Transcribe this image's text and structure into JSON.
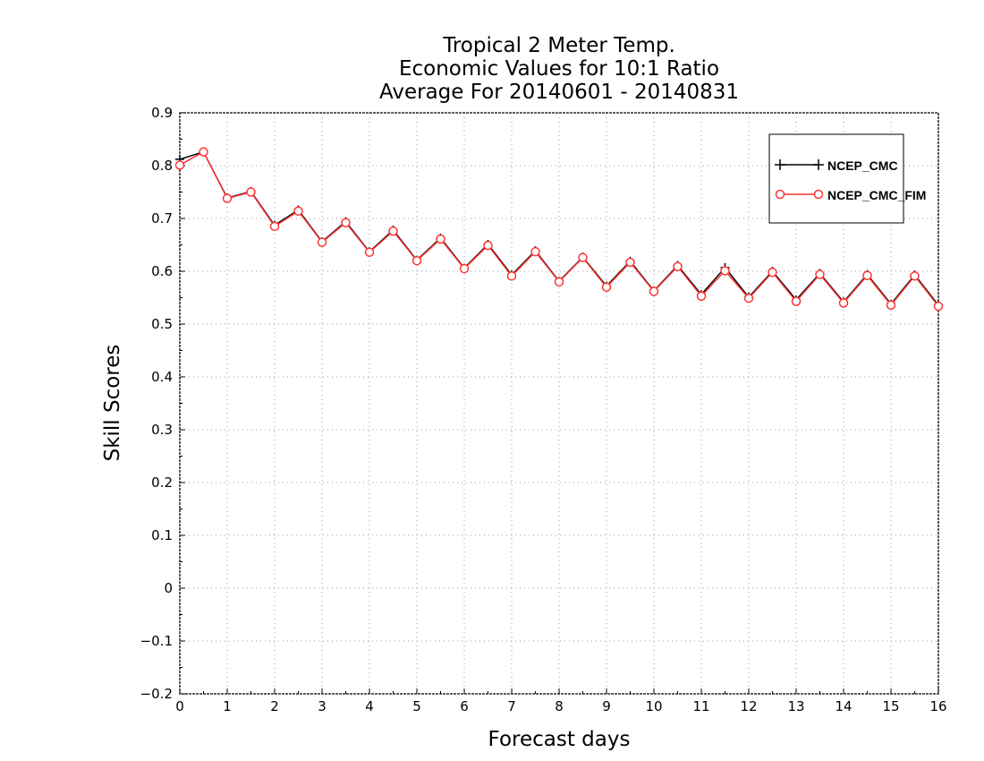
{
  "chart_data": {
    "type": "line",
    "title": [
      "Tropical 2 Meter Temp.",
      "Economic Values for 10:1 Ratio",
      "Average For 20140601 - 20140831"
    ],
    "xlabel": "Forecast days",
    "ylabel": "Skill Scores",
    "xlim": [
      0,
      16
    ],
    "ylim": [
      -0.2,
      0.9
    ],
    "xticks": [
      "0",
      "1",
      "2",
      "3",
      "4",
      "5",
      "6",
      "7",
      "8",
      "9",
      "10",
      "11",
      "12",
      "13",
      "14",
      "15",
      "16"
    ],
    "yticks": [
      "-0.2",
      "-0.1",
      "0",
      "0.1",
      "0.2",
      "0.3",
      "0.4",
      "0.5",
      "0.6",
      "0.7",
      "0.8",
      "0.9"
    ],
    "grid": true,
    "legend_position": "top-right",
    "x": [
      0,
      0.5,
      1,
      1.5,
      2,
      2.5,
      3,
      3.5,
      4,
      4.5,
      5,
      5.5,
      6,
      6.5,
      7,
      7.5,
      8,
      8.5,
      9,
      9.5,
      10,
      10.5,
      11,
      11.5,
      12,
      12.5,
      13,
      13.5,
      14,
      14.5,
      15,
      15.5,
      16
    ],
    "series": [
      {
        "name": "NCEP_CMC",
        "color": "#000000",
        "marker": "plus",
        "values": [
          0.812,
          0.826,
          0.739,
          0.751,
          0.687,
          0.716,
          0.656,
          0.694,
          0.637,
          0.678,
          0.621,
          0.663,
          0.606,
          0.651,
          0.593,
          0.639,
          0.581,
          0.627,
          0.572,
          0.619,
          0.563,
          0.611,
          0.556,
          0.607,
          0.551,
          0.6,
          0.546,
          0.596,
          0.542,
          0.594,
          0.538,
          0.593,
          0.536
        ]
      },
      {
        "name": "NCEP_CMC_FIM",
        "color": "#ff3333",
        "marker": "circle",
        "values": [
          0.801,
          0.826,
          0.738,
          0.75,
          0.685,
          0.714,
          0.655,
          0.692,
          0.636,
          0.676,
          0.62,
          0.661,
          0.605,
          0.649,
          0.591,
          0.637,
          0.58,
          0.626,
          0.57,
          0.617,
          0.562,
          0.609,
          0.553,
          0.601,
          0.549,
          0.598,
          0.543,
          0.594,
          0.54,
          0.592,
          0.536,
          0.591,
          0.534
        ]
      }
    ]
  }
}
